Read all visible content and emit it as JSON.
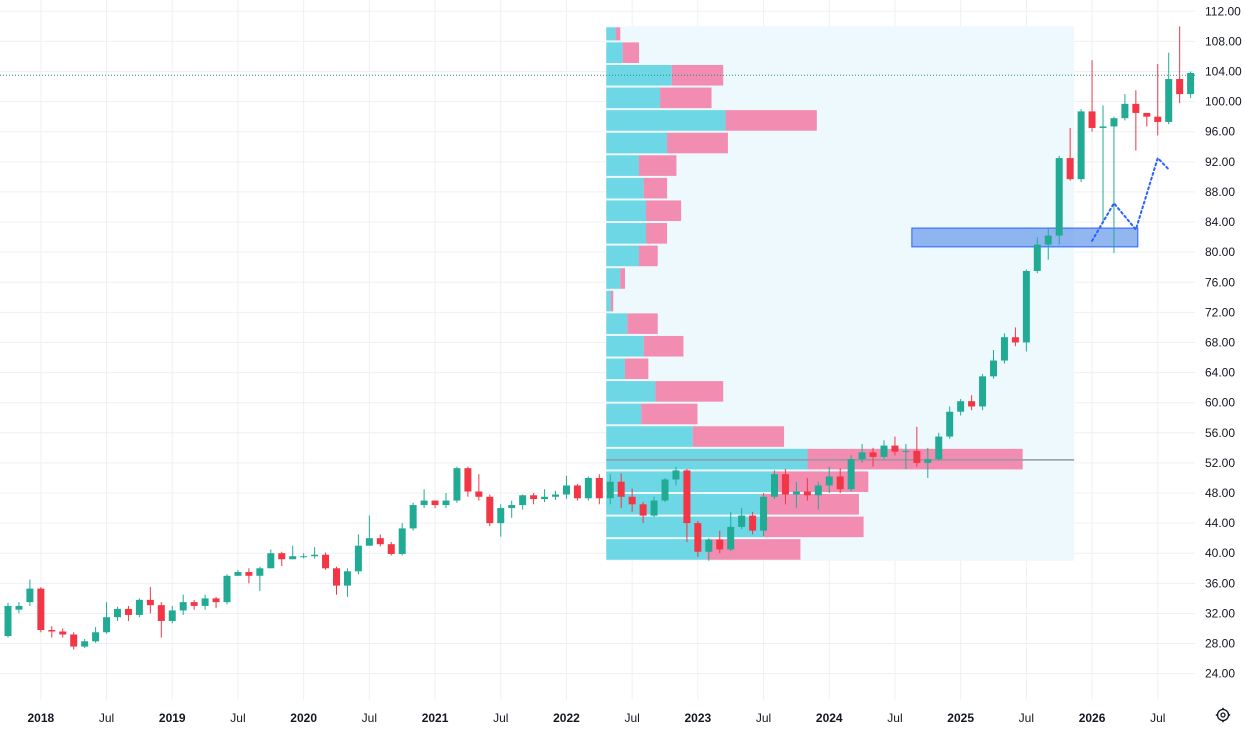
{
  "colors": {
    "up": "#22ab94",
    "down": "#f23645",
    "grid": "#eef0f3",
    "vp_up": "#5fd3e3",
    "vp_down": "#f27fa8",
    "vp_bg": "#eef9fd",
    "zone_fill": "#6d9eeb",
    "zone_border": "#2962ff",
    "poc_line": "#9598a1",
    "price_line": "#2a8c8c",
    "projection": "#2962ff"
  },
  "icons": {
    "settings": "gear-icon"
  },
  "chart_data": {
    "type": "candlestick",
    "timeframe": "monthly",
    "y_axis": {
      "ticks": [
        "24.00",
        "28.00",
        "32.00",
        "36.00",
        "40.00",
        "44.00",
        "48.00",
        "52.00",
        "56.00",
        "60.00",
        "64.00",
        "68.00",
        "72.00",
        "76.00",
        "80.00",
        "84.00",
        "88.00",
        "92.00",
        "96.00",
        "100.00",
        "104.00",
        "108.00",
        "112.00"
      ],
      "range": [
        20.5,
        113.5
      ]
    },
    "x_axis": {
      "labels": [
        {
          "text": "2018",
          "year": true,
          "t": 2018.0
        },
        {
          "text": "Jul",
          "year": false,
          "t": 2018.5
        },
        {
          "text": "2019",
          "year": true,
          "t": 2019.0
        },
        {
          "text": "Jul",
          "year": false,
          "t": 2019.5
        },
        {
          "text": "2020",
          "year": true,
          "t": 2020.0
        },
        {
          "text": "Jul",
          "year": false,
          "t": 2020.5
        },
        {
          "text": "2021",
          "year": true,
          "t": 2021.0
        },
        {
          "text": "Jul",
          "year": false,
          "t": 2021.5
        },
        {
          "text": "2022",
          "year": true,
          "t": 2022.0
        },
        {
          "text": "Jul",
          "year": false,
          "t": 2022.5
        },
        {
          "text": "2023",
          "year": true,
          "t": 2023.0
        },
        {
          "text": "Jul",
          "year": false,
          "t": 2023.5
        },
        {
          "text": "2024",
          "year": true,
          "t": 2024.0
        },
        {
          "text": "Jul",
          "year": false,
          "t": 2024.5
        },
        {
          "text": "2025",
          "year": true,
          "t": 2025.0
        },
        {
          "text": "Jul",
          "year": false,
          "t": 2025.5
        },
        {
          "text": "2026",
          "year": true,
          "t": 2026.0
        },
        {
          "text": "Jul",
          "year": false,
          "t": 2026.5
        }
      ]
    },
    "start": "2017-10",
    "candles": [
      [
        29.0,
        33.0,
        28.8,
        33.4
      ],
      [
        32.5,
        33.0,
        32.0,
        33.5
      ],
      [
        33.5,
        35.3,
        33.0,
        36.5
      ],
      [
        35.3,
        29.8,
        29.5,
        35.5
      ],
      [
        29.8,
        29.6,
        28.8,
        30.3
      ],
      [
        29.6,
        29.2,
        28.8,
        30.0
      ],
      [
        29.2,
        27.6,
        27.2,
        29.5
      ],
      [
        27.6,
        28.3,
        27.4,
        28.6
      ],
      [
        28.3,
        29.5,
        28.1,
        30.2
      ],
      [
        29.5,
        31.5,
        29.3,
        33.5
      ],
      [
        31.5,
        32.6,
        31.0,
        32.9
      ],
      [
        32.6,
        31.8,
        31.0,
        33.0
      ],
      [
        31.8,
        33.8,
        31.5,
        34.0
      ],
      [
        33.8,
        33.1,
        32.0,
        35.5
      ],
      [
        33.1,
        31.0,
        28.8,
        33.5
      ],
      [
        31.0,
        32.4,
        30.7,
        33.0
      ],
      [
        32.4,
        33.5,
        31.8,
        34.5
      ],
      [
        33.5,
        33.0,
        32.5,
        33.8
      ],
      [
        33.0,
        34.0,
        32.5,
        34.5
      ],
      [
        34.0,
        33.5,
        32.7,
        34.2
      ],
      [
        33.5,
        37.0,
        33.2,
        37.2
      ],
      [
        37.0,
        37.5,
        37.0,
        37.8
      ],
      [
        37.5,
        37.0,
        36.0,
        38.0
      ],
      [
        37.0,
        38.0,
        35.0,
        38.2
      ],
      [
        38.0,
        40.0,
        38.0,
        40.5
      ],
      [
        40.0,
        39.2,
        38.3,
        40.2
      ],
      [
        39.2,
        39.6,
        39.2,
        41.0
      ],
      [
        39.6,
        39.6,
        39.3,
        40.0
      ],
      [
        39.6,
        39.8,
        39.3,
        40.8
      ],
      [
        39.8,
        38.0,
        37.8,
        40.1
      ],
      [
        38.0,
        35.7,
        34.5,
        38.2
      ],
      [
        35.7,
        37.6,
        34.2,
        38.0
      ],
      [
        37.6,
        41.0,
        37.2,
        42.5
      ],
      [
        41.0,
        42.0,
        41.0,
        45.0
      ],
      [
        42.0,
        41.2,
        40.9,
        42.5
      ],
      [
        41.2,
        39.9,
        39.7,
        41.5
      ],
      [
        39.9,
        43.3,
        39.7,
        44.0
      ],
      [
        43.3,
        46.4,
        43.0,
        46.7
      ],
      [
        46.4,
        47.0,
        46.0,
        48.5
      ],
      [
        47.0,
        46.4,
        46.0,
        47.0
      ],
      [
        46.4,
        47.0,
        46.0,
        48.0
      ],
      [
        47.0,
        51.3,
        46.7,
        51.5
      ],
      [
        51.3,
        48.2,
        47.5,
        51.5
      ],
      [
        48.2,
        47.5,
        47.0,
        50.5
      ],
      [
        47.5,
        44.0,
        43.6,
        47.8
      ],
      [
        44.0,
        46.0,
        42.2,
        46.5
      ],
      [
        46.0,
        46.4,
        44.7,
        47.0
      ],
      [
        46.4,
        47.7,
        45.8,
        47.8
      ],
      [
        47.7,
        47.2,
        46.5,
        48.0
      ],
      [
        47.2,
        47.5,
        46.8,
        48.5
      ],
      [
        47.5,
        47.8,
        47.1,
        48.3
      ],
      [
        47.8,
        49.0,
        47.2,
        50.3
      ],
      [
        49.0,
        47.3,
        47.0,
        49.2
      ],
      [
        47.3,
        50.0,
        47.0,
        50.2
      ],
      [
        50.0,
        47.3,
        46.5,
        50.5
      ],
      [
        47.3,
        49.5,
        46.5,
        50.5
      ],
      [
        49.5,
        47.5,
        46.0,
        50.6
      ],
      [
        47.5,
        46.5,
        45.5,
        48.6
      ],
      [
        46.5,
        45.0,
        44.0,
        46.8
      ],
      [
        45.0,
        47.0,
        44.8,
        47.5
      ],
      [
        47.0,
        49.8,
        46.8,
        50.0
      ],
      [
        49.8,
        51.0,
        49.0,
        51.5
      ],
      [
        51.0,
        44.0,
        41.5,
        51.2
      ],
      [
        44.0,
        40.2,
        39.5,
        44.3
      ],
      [
        40.2,
        41.8,
        39.0,
        42.0
      ],
      [
        41.8,
        40.5,
        40.0,
        43.0
      ],
      [
        40.5,
        43.5,
        40.3,
        45.5
      ],
      [
        43.5,
        45.0,
        43.2,
        46.0
      ],
      [
        45.0,
        43.0,
        42.5,
        45.5
      ],
      [
        43.0,
        47.5,
        42.3,
        48.0
      ],
      [
        47.5,
        50.5,
        47.2,
        51.0
      ],
      [
        50.5,
        47.8,
        46.5,
        51.2
      ],
      [
        47.8,
        48.2,
        46.0,
        49.5
      ],
      [
        48.2,
        47.7,
        47.0,
        50.0
      ],
      [
        47.7,
        49.0,
        45.8,
        49.5
      ],
      [
        49.0,
        50.2,
        48.0,
        51.5
      ],
      [
        50.2,
        48.5,
        48.0,
        51.3
      ],
      [
        48.5,
        52.5,
        48.2,
        53.0
      ],
      [
        52.5,
        53.4,
        52.0,
        54.5
      ],
      [
        53.4,
        52.8,
        51.5,
        54.0
      ],
      [
        52.8,
        54.3,
        52.5,
        55.0
      ],
      [
        54.3,
        53.5,
        53.0,
        55.5
      ],
      [
        53.5,
        53.6,
        51.2,
        54.5
      ],
      [
        53.6,
        52.0,
        51.5,
        56.8
      ],
      [
        52.0,
        52.5,
        50.0,
        54.0
      ],
      [
        52.5,
        55.5,
        52.3,
        56.0
      ],
      [
        55.5,
        58.8,
        55.2,
        59.5
      ],
      [
        58.8,
        60.2,
        58.3,
        60.5
      ],
      [
        60.2,
        59.5,
        59.0,
        61.0
      ],
      [
        59.5,
        63.5,
        59.0,
        63.8
      ],
      [
        63.5,
        65.6,
        63.2,
        67.0
      ],
      [
        65.6,
        68.7,
        65.2,
        69.2
      ],
      [
        68.7,
        68.0,
        67.5,
        70.0
      ],
      [
        68.0,
        77.5,
        66.8,
        77.7
      ],
      [
        77.5,
        81.0,
        77.2,
        82.0
      ],
      [
        81.0,
        82.2,
        79.0,
        83.3
      ],
      [
        82.2,
        92.5,
        81.0,
        92.8
      ],
      [
        92.5,
        89.7,
        89.5,
        96.5
      ],
      [
        89.7,
        98.7,
        89.3,
        99.0
      ],
      [
        98.7,
        96.5,
        96.0,
        105.5
      ],
      [
        96.5,
        96.7,
        84.0,
        99.5
      ],
      [
        96.7,
        97.8,
        79.9,
        98.0
      ],
      [
        97.8,
        99.7,
        97.5,
        101.0
      ],
      [
        99.7,
        98.5,
        93.5,
        101.5
      ],
      [
        98.5,
        98.0,
        96.7,
        98.5
      ],
      [
        98.0,
        97.3,
        95.5,
        105.0
      ],
      [
        97.3,
        103.0,
        97.0,
        106.5
      ],
      [
        103.0,
        101.0,
        99.8,
        110.0
      ],
      [
        101.0,
        103.8,
        100.5,
        104.0
      ]
    ],
    "volume_profile": {
      "price_range": [
        39.0,
        110.0
      ],
      "bins": [
        {
          "lo": 39.0,
          "hi": 42.0,
          "up": 0.215,
          "down": 0.2
        },
        {
          "lo": 42.0,
          "hi": 45.0,
          "up": 0.335,
          "down": 0.215
        },
        {
          "lo": 45.0,
          "hi": 48.0,
          "up": 0.33,
          "down": 0.21
        },
        {
          "lo": 48.0,
          "hi": 51.0,
          "up": 0.355,
          "down": 0.205
        },
        {
          "lo": 51.0,
          "hi": 54.0,
          "up": 0.43,
          "down": 0.46
        },
        {
          "lo": 54.0,
          "hi": 57.0,
          "up": 0.185,
          "down": 0.195
        },
        {
          "lo": 57.0,
          "hi": 60.0,
          "up": 0.075,
          "down": 0.12
        },
        {
          "lo": 60.0,
          "hi": 63.0,
          "up": 0.105,
          "down": 0.145
        },
        {
          "lo": 63.0,
          "hi": 66.0,
          "up": 0.04,
          "down": 0.05
        },
        {
          "lo": 66.0,
          "hi": 69.0,
          "up": 0.08,
          "down": 0.085
        },
        {
          "lo": 69.0,
          "hi": 72.0,
          "up": 0.045,
          "down": 0.065
        },
        {
          "lo": 72.0,
          "hi": 75.0,
          "up": 0.01,
          "down": 0.005
        },
        {
          "lo": 75.0,
          "hi": 78.0,
          "up": 0.03,
          "down": 0.01
        },
        {
          "lo": 78.0,
          "hi": 81.0,
          "up": 0.07,
          "down": 0.04
        },
        {
          "lo": 81.0,
          "hi": 84.0,
          "up": 0.085,
          "down": 0.045
        },
        {
          "lo": 84.0,
          "hi": 87.0,
          "up": 0.085,
          "down": 0.075
        },
        {
          "lo": 87.0,
          "hi": 90.0,
          "up": 0.08,
          "down": 0.05
        },
        {
          "lo": 90.0,
          "hi": 93.0,
          "up": 0.07,
          "down": 0.08
        },
        {
          "lo": 93.0,
          "hi": 96.0,
          "up": 0.13,
          "down": 0.13
        },
        {
          "lo": 96.0,
          "hi": 99.0,
          "up": 0.255,
          "down": 0.195
        },
        {
          "lo": 99.0,
          "hi": 102.0,
          "up": 0.115,
          "down": 0.11
        },
        {
          "lo": 102.0,
          "hi": 105.0,
          "up": 0.14,
          "down": 0.11
        },
        {
          "lo": 105.0,
          "hi": 108.0,
          "up": 0.035,
          "down": 0.035
        },
        {
          "lo": 108.0,
          "hi": 110.0,
          "up": 0.02,
          "down": 0.01
        }
      ],
      "poc_price": 52.4,
      "range_start": "2022-05",
      "range_end": "2025-11"
    },
    "support_zone": {
      "low": 80.7,
      "high": 83.2,
      "start": "2024-09",
      "end": "2026-05"
    },
    "current_price_line": 103.5,
    "projection_path": [
      [
        "2026-01",
        81.5
      ],
      [
        "2026-03",
        86.5
      ],
      [
        "2026-05",
        83.0
      ],
      [
        "2026-07",
        92.5
      ],
      [
        "2026-08",
        91.0
      ]
    ]
  }
}
